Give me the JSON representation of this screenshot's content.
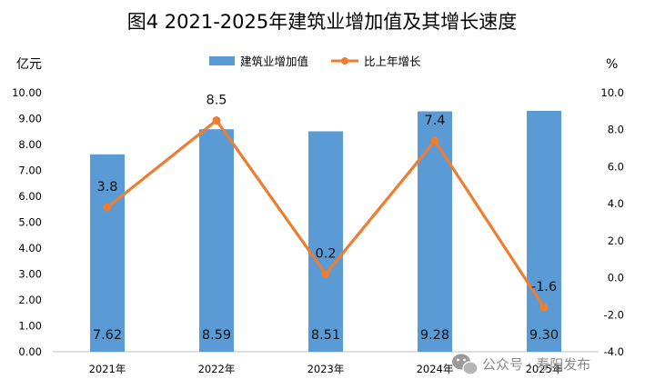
{
  "chart_data": {
    "type": "bar+line",
    "title": "图4   2021-2025年建筑业增加值及其增长速度",
    "categories": [
      "2021年",
      "2022年",
      "2023年",
      "2024年",
      "2025年"
    ],
    "series": [
      {
        "name": "建筑业增加值",
        "type": "bar",
        "axis": "left",
        "color": "#5b9bd5",
        "values": [
          7.62,
          8.59,
          8.51,
          9.28,
          9.3
        ],
        "labels": [
          "7.62",
          "8.59",
          "8.51",
          "9.28",
          "9.30"
        ]
      },
      {
        "name": "比上年增长",
        "type": "line",
        "axis": "right",
        "color": "#ed7d31",
        "values": [
          3.8,
          8.5,
          0.2,
          7.4,
          -1.6
        ],
        "labels": [
          "3.8",
          "8.5",
          "0.2",
          "7.4",
          "-1.6"
        ]
      }
    ],
    "y_left": {
      "unit": "亿元",
      "ylim": [
        0,
        10
      ],
      "ticks": [
        "0.00",
        "1.00",
        "2.00",
        "3.00",
        "4.00",
        "5.00",
        "6.00",
        "7.00",
        "8.00",
        "9.00",
        "10.00"
      ]
    },
    "y_right": {
      "unit": "%",
      "ylim": [
        -4,
        10
      ],
      "ticks": [
        "-4.0",
        "-2.0",
        "0.0",
        "2.0",
        "4.0",
        "6.0",
        "8.0",
        "10.0"
      ]
    },
    "legend_position": "top-center",
    "grid": false
  },
  "watermark": {
    "text": "公众号 · 寿阳发布",
    "icon": "wechat-icon"
  }
}
